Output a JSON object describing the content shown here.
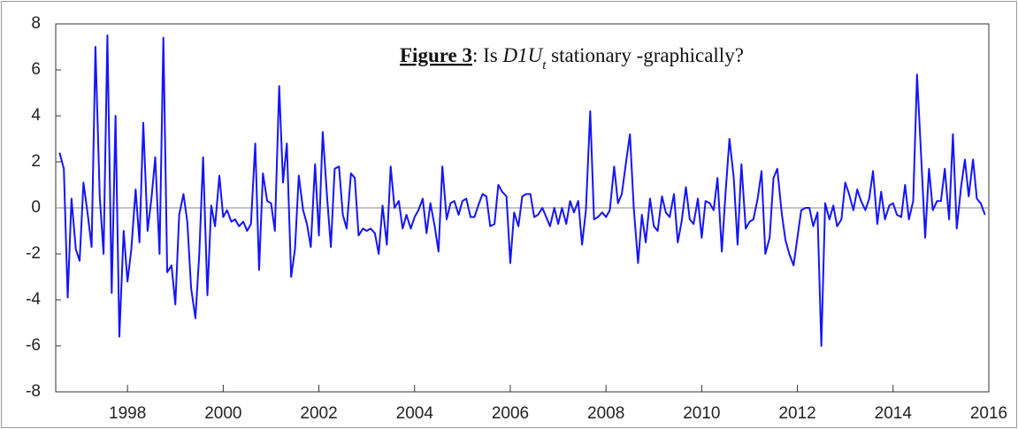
{
  "chart_data": {
    "type": "line",
    "title_parts": [
      "Figure 3",
      ": Is ",
      "D1U",
      "t",
      " stationary -graphically?"
    ],
    "xlim": [
      1996.5,
      2016.0
    ],
    "xticks": [
      1998,
      2000,
      2002,
      2004,
      2006,
      2008,
      2010,
      2012,
      2014,
      2016
    ],
    "ylim": [
      -8,
      8
    ],
    "yticks": [
      -8,
      -6,
      -4,
      -2,
      0,
      2,
      4,
      6,
      8
    ],
    "zero_line": true,
    "x": [
      1996.58,
      1996.67,
      1996.75,
      1996.83,
      1996.92,
      1997.0,
      1997.08,
      1997.17,
      1997.25,
      1997.33,
      1997.42,
      1997.5,
      1997.58,
      1997.67,
      1997.75,
      1997.83,
      1997.92,
      1998.0,
      1998.08,
      1998.17,
      1998.25,
      1998.33,
      1998.42,
      1998.5,
      1998.58,
      1998.67,
      1998.75,
      1998.83,
      1998.92,
      1999.0,
      1999.08,
      1999.17,
      1999.25,
      1999.33,
      1999.42,
      1999.5,
      1999.58,
      1999.67,
      1999.75,
      1999.83,
      1999.92,
      2000.0,
      2000.08,
      2000.17,
      2000.25,
      2000.33,
      2000.42,
      2000.5,
      2000.58,
      2000.67,
      2000.75,
      2000.83,
      2000.92,
      2001.0,
      2001.08,
      2001.17,
      2001.25,
      2001.33,
      2001.42,
      2001.5,
      2001.58,
      2001.67,
      2001.75,
      2001.83,
      2001.92,
      2002.0,
      2002.08,
      2002.17,
      2002.25,
      2002.33,
      2002.42,
      2002.5,
      2002.58,
      2002.67,
      2002.75,
      2002.83,
      2002.92,
      2003.0,
      2003.08,
      2003.17,
      2003.25,
      2003.33,
      2003.42,
      2003.5,
      2003.58,
      2003.67,
      2003.75,
      2003.83,
      2003.92,
      2004.0,
      2004.08,
      2004.17,
      2004.25,
      2004.33,
      2004.42,
      2004.5,
      2004.58,
      2004.67,
      2004.75,
      2004.83,
      2004.92,
      2005.0,
      2005.08,
      2005.17,
      2005.25,
      2005.33,
      2005.42,
      2005.5,
      2005.58,
      2005.67,
      2005.75,
      2005.83,
      2005.92,
      2006.0,
      2006.08,
      2006.17,
      2006.25,
      2006.33,
      2006.42,
      2006.5,
      2006.58,
      2006.67,
      2006.75,
      2006.83,
      2006.92,
      2007.0,
      2007.08,
      2007.17,
      2007.25,
      2007.33,
      2007.42,
      2007.5,
      2007.58,
      2007.67,
      2007.75,
      2007.83,
      2007.92,
      2008.0,
      2008.08,
      2008.17,
      2008.25,
      2008.33,
      2008.42,
      2008.5,
      2008.58,
      2008.67,
      2008.75,
      2008.83,
      2008.92,
      2009.0,
      2009.08,
      2009.17,
      2009.25,
      2009.33,
      2009.42,
      2009.5,
      2009.58,
      2009.67,
      2009.75,
      2009.83,
      2009.92,
      2010.0,
      2010.08,
      2010.17,
      2010.25,
      2010.33,
      2010.42,
      2010.5,
      2010.58,
      2010.67,
      2010.75,
      2010.83,
      2010.92,
      2011.0,
      2011.08,
      2011.17,
      2011.25,
      2011.33,
      2011.42,
      2011.5,
      2011.58,
      2011.67,
      2011.75,
      2011.83,
      2011.92,
      2012.0,
      2012.08,
      2012.17,
      2012.25,
      2012.33,
      2012.42,
      2012.5,
      2012.58,
      2012.67,
      2012.75,
      2012.83,
      2012.92,
      2013.0,
      2013.08,
      2013.17,
      2013.25,
      2013.33,
      2013.42,
      2013.5,
      2013.58,
      2013.67,
      2013.75,
      2013.83,
      2013.92,
      2014.0,
      2014.08,
      2014.17,
      2014.25,
      2014.33,
      2014.42,
      2014.5,
      2014.58,
      2014.67,
      2014.75,
      2014.83,
      2014.92,
      2015.0,
      2015.08,
      2015.17,
      2015.25,
      2015.33,
      2015.42,
      2015.5,
      2015.58,
      2015.67,
      2015.75,
      2015.83,
      2015.92
    ],
    "series": [
      {
        "color": "#1414ff",
        "values": [
          2.4,
          1.7,
          -3.9,
          0.4,
          -1.8,
          -2.3,
          1.1,
          -0.3,
          -1.7,
          7.0,
          0.5,
          -2.0,
          7.5,
          -3.7,
          4.0,
          -5.6,
          -1.0,
          -3.2,
          -1.8,
          0.8,
          -1.5,
          3.7,
          -1.0,
          0.4,
          2.2,
          -2.0,
          7.4,
          -2.8,
          -2.5,
          -4.2,
          -0.3,
          0.6,
          -0.6,
          -3.5,
          -4.8,
          -2.0,
          2.2,
          -3.8,
          0.1,
          -0.8,
          1.4,
          -0.4,
          -0.1,
          -0.6,
          -0.5,
          -0.8,
          -0.6,
          -1.0,
          -0.7,
          2.8,
          -2.7,
          1.5,
          0.3,
          0.2,
          -1.0,
          5.3,
          1.1,
          2.8,
          -3.0,
          -1.8,
          1.4,
          -0.1,
          -0.7,
          -1.7,
          1.9,
          -1.2,
          3.3,
          0.5,
          -1.7,
          1.7,
          1.8,
          -0.3,
          -0.9,
          1.5,
          1.3,
          -1.2,
          -0.9,
          -1.0,
          -0.9,
          -1.1,
          -2.0,
          0.1,
          -1.6,
          1.8,
          0.0,
          0.3,
          -0.9,
          -0.3,
          -0.9,
          -0.4,
          -0.1,
          0.4,
          -1.1,
          0.2,
          -0.8,
          -1.9,
          1.8,
          -0.5,
          0.2,
          0.3,
          -0.3,
          0.3,
          0.4,
          -0.4,
          -0.4,
          0.1,
          0.6,
          0.5,
          -0.8,
          -0.7,
          1.0,
          0.7,
          0.5,
          -2.4,
          -0.2,
          -0.8,
          0.5,
          0.6,
          0.6,
          -0.4,
          -0.3,
          0.0,
          -0.4,
          -0.8,
          0.0,
          -0.7,
          0.0,
          -0.7,
          0.3,
          -0.2,
          0.3,
          -1.6,
          -0.1,
          4.2,
          -0.5,
          -0.4,
          -0.2,
          -0.4,
          -0.1,
          1.8,
          0.2,
          0.6,
          2.0,
          3.2,
          0.0,
          -2.4,
          -0.3,
          -1.5,
          0.4,
          -0.8,
          -1.0,
          0.5,
          -0.2,
          -0.4,
          0.6,
          -1.5,
          -0.6,
          0.9,
          -0.5,
          -0.7,
          0.4,
          -1.3,
          0.3,
          0.2,
          -0.1,
          1.3,
          -1.9,
          0.7,
          3.0,
          1.3,
          -1.6,
          1.9,
          -0.9,
          -0.6,
          -0.5,
          0.4,
          1.6,
          -2.0,
          -1.3,
          1.3,
          1.7,
          -0.2,
          -1.4,
          -2.0,
          -2.5,
          -1.3,
          -0.1,
          0.0,
          0.0,
          -0.8,
          -0.2,
          -6.0,
          0.2,
          -0.5,
          0.1,
          -0.8,
          -0.5,
          1.1,
          0.6,
          -0.1,
          0.8,
          0.3,
          -0.1,
          0.4,
          1.6,
          -0.7,
          0.7,
          -0.5,
          0.1,
          0.2,
          -0.3,
          -0.4,
          1.0,
          -0.5,
          0.3,
          5.8,
          2.5,
          -1.3,
          1.7,
          -0.1,
          0.3,
          0.3,
          1.7,
          -0.5,
          3.2,
          -0.9,
          0.9,
          2.1,
          0.5,
          2.1,
          0.4,
          0.2,
          -0.3
        ]
      }
    ]
  }
}
